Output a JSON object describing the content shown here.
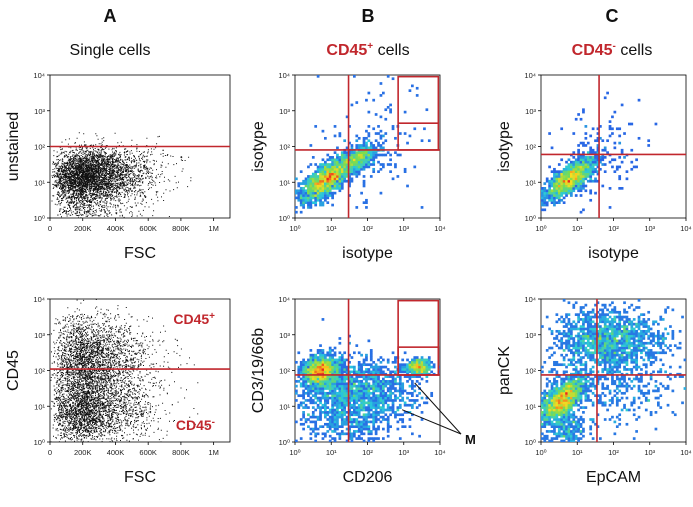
{
  "columns": [
    {
      "letter": "A",
      "title": "Single cells",
      "title_red": "",
      "title_suffix": ""
    },
    {
      "letter": "B",
      "title": "",
      "title_red": "CD45",
      "title_sup": "+",
      "title_suffix": " cells"
    },
    {
      "letter": "C",
      "title": "",
      "title_red": "CD45",
      "title_sup": "-",
      "title_suffix": " cells"
    }
  ],
  "colors": {
    "gate_red": "#c1272d",
    "dot_black": "#111111"
  },
  "chart_data": [
    {
      "id": "A-top",
      "type": "scatter",
      "render": "black",
      "xlabel": "FSC",
      "ylabel": "unstained",
      "xscale": "linear",
      "yscale": "log",
      "xlim": [
        0,
        1100000
      ],
      "ylim": [
        1,
        10000
      ],
      "xticks": [
        "0",
        "200K",
        "400K",
        "600K",
        "800K",
        "1M"
      ],
      "yticks": [
        "10⁰",
        "10¹",
        "10²",
        "10³",
        "10⁴"
      ],
      "hlines": [
        100
      ],
      "vlines": [],
      "boxes": [],
      "annotations": []
    },
    {
      "id": "B-top",
      "type": "scatter",
      "render": "density",
      "xlabel": "isotype",
      "ylabel": "isotype",
      "xscale": "log",
      "yscale": "log",
      "xlim": [
        1,
        10000
      ],
      "ylim": [
        1,
        10000
      ],
      "xticks": [
        "10⁰",
        "10¹",
        "10²",
        "10³",
        "10⁴"
      ],
      "yticks": [
        "10⁰",
        "10¹",
        "10²",
        "10³",
        "10⁴"
      ],
      "hlines": [
        80
      ],
      "vlines": [
        30
      ],
      "boxes": [
        {
          "x": [
            700,
            9000
          ],
          "y": [
            80,
            9000
          ]
        },
        {
          "x": [
            700,
            9000
          ],
          "y": [
            450,
            450
          ]
        }
      ],
      "annotations": []
    },
    {
      "id": "C-top",
      "type": "scatter",
      "render": "density",
      "xlabel": "isotype",
      "ylabel": "isotype",
      "xscale": "log",
      "yscale": "log",
      "xlim": [
        1,
        10000
      ],
      "ylim": [
        1,
        10000
      ],
      "xticks": [
        "10⁰",
        "10¹",
        "10²",
        "10³",
        "10⁴"
      ],
      "yticks": [
        "10⁰",
        "10¹",
        "10²",
        "10³",
        "10⁴"
      ],
      "hlines": [
        60
      ],
      "vlines": [
        40
      ],
      "boxes": [],
      "annotations": []
    },
    {
      "id": "A-bottom",
      "type": "scatter",
      "render": "black",
      "xlabel": "FSC",
      "ylabel": "CD45",
      "xscale": "linear",
      "yscale": "log",
      "xlim": [
        0,
        1100000
      ],
      "ylim": [
        1,
        10000
      ],
      "xticks": [
        "0",
        "200K",
        "400K",
        "600K",
        "800K",
        "1M"
      ],
      "yticks": [
        "10⁰",
        "10¹",
        "10²",
        "10³",
        "10⁴"
      ],
      "hlines": [
        110
      ],
      "vlines": [],
      "boxes": [],
      "annotations": [
        {
          "text": "CD45",
          "sup": "+",
          "pos": "upper-right"
        },
        {
          "text": "CD45",
          "sup": "-",
          "pos": "lower-right"
        }
      ]
    },
    {
      "id": "B-bottom",
      "type": "scatter",
      "render": "density",
      "xlabel": "CD206",
      "ylabel": "CD3/19/66b",
      "xscale": "log",
      "yscale": "log",
      "xlim": [
        1,
        10000
      ],
      "ylim": [
        1,
        10000
      ],
      "xticks": [
        "10⁰",
        "10¹",
        "10²",
        "10³",
        "10⁴"
      ],
      "yticks": [
        "10⁰",
        "10¹",
        "10²",
        "10³",
        "10⁴"
      ],
      "hlines": [
        75
      ],
      "vlines": [
        30
      ],
      "boxes": [
        {
          "x": [
            700,
            9000
          ],
          "y": [
            75,
            9000
          ]
        },
        {
          "x": [
            700,
            9000
          ],
          "y": [
            75,
            450
          ]
        }
      ],
      "annotations": [
        {
          "text": "M",
          "pos": "callout"
        }
      ]
    },
    {
      "id": "C-bottom",
      "type": "scatter",
      "render": "density",
      "xlabel": "EpCAM",
      "ylabel": "panCK",
      "xscale": "log",
      "yscale": "log",
      "xlim": [
        1,
        10000
      ],
      "ylim": [
        1,
        10000
      ],
      "xticks": [
        "10⁰",
        "10¹",
        "10²",
        "10³",
        "10⁴"
      ],
      "yticks": [
        "10⁰",
        "10¹",
        "10²",
        "10³",
        "10⁴"
      ],
      "hlines": [
        75
      ],
      "vlines": [
        35
      ],
      "boxes": [],
      "annotations": []
    }
  ]
}
